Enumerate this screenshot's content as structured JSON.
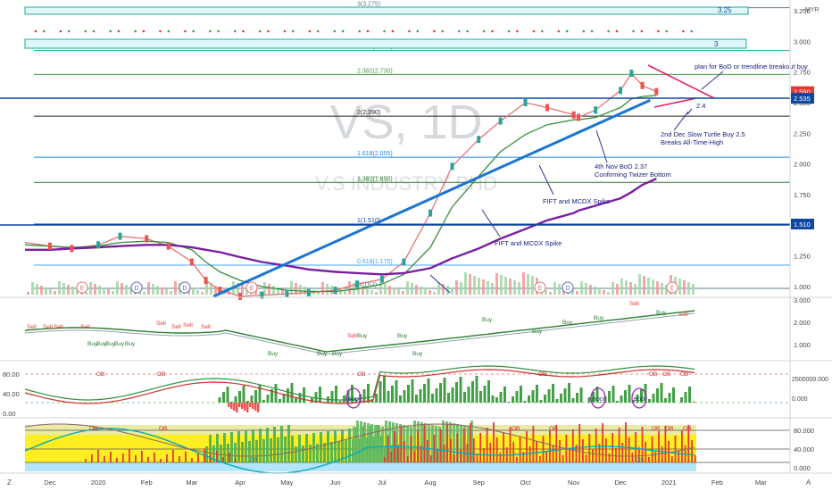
{
  "watermark": {
    "symbol": "VS, 1D",
    "company": "V.S INDUSTRY BHD"
  },
  "currency": "MYR",
  "x_axis": {
    "ticks": [
      "Dec",
      "2020",
      "Feb",
      "Mar",
      "Apr",
      "May",
      "Jun",
      "Jul",
      "Aug",
      "Sep",
      "Oct",
      "Nov",
      "Dec",
      "2021",
      "Feb",
      "Mar"
    ],
    "tz_label": "Z",
    "auto_label": "A"
  },
  "price_panel": {
    "y_ticks": [
      "3.250",
      "3.000",
      "2.750",
      "2.500",
      "2.250",
      "2.000",
      "1.750",
      "1.500",
      "1.250",
      "1.000"
    ],
    "price_tags": [
      {
        "label": "2.590",
        "color": "#e53935"
      },
      {
        "label": "2.535",
        "color": "#0d47a1"
      },
      {
        "label": "1.510",
        "color": "#0d47a1"
      }
    ],
    "fib_levels": [
      {
        "label": "3(3.275)",
        "color": "#607d8b"
      },
      {
        "label": "2.618(2.925)",
        "color": "#26a69a"
      },
      {
        "label": "2.382(2.730)",
        "color": "#43a047"
      },
      {
        "label": "2(2.390)",
        "color": "#212121"
      },
      {
        "label": "1.618(2.055)",
        "color": "#1e88e5"
      },
      {
        "label": "1.382(1.850)",
        "color": "#2e7d32"
      },
      {
        "label": "1(1.510)",
        "color": "#0d47a1"
      },
      {
        "label": "0.618(1.175)",
        "color": "#42a5f5"
      },
      {
        "label": "0(0.62)",
        "color": "#607d8b"
      }
    ],
    "box_labels": [
      "3.25",
      "3"
    ],
    "annotations": [
      {
        "text": "plan for BoD or trendline breakout buy"
      },
      {
        "text": "2.4"
      },
      {
        "text": "2nd Dec Slow Turtle Buy 2.5"
      },
      {
        "text": "Breaks All-Time-High"
      },
      {
        "text": "4th Nov BoD 2.37"
      },
      {
        "text": "Confirming Twizer Bottom"
      },
      {
        "text": "FIFT and MCDX Spike"
      },
      {
        "text": "FIFT and MCDX Spike"
      }
    ],
    "event_markers": [
      "E",
      "D",
      "D",
      "E",
      "E",
      "D",
      "E"
    ]
  },
  "indicator1": {
    "y_ticks": [
      "3.000",
      "2.000",
      "1.000"
    ],
    "labels": [
      "Sell",
      "Sell",
      "Sell",
      "Sell",
      "Sell",
      "Sell",
      "Sell",
      "Sell",
      "Buy",
      "Buy",
      "Buy",
      "Buy",
      "Buy",
      "Buy",
      "Buy",
      "Buy",
      "Buy",
      "Buy",
      "Buy",
      "Buy",
      "Buy",
      "Sell",
      "Sell",
      "Buy",
      "Buy",
      "Sell",
      "Buy"
    ]
  },
  "indicator2": {
    "y_ticks_left": [
      "80.00",
      "40.00",
      "0.00"
    ],
    "y_ticks_right": [
      "2500000.000",
      "0.000"
    ],
    "ob_labels": [
      "OB",
      "OB",
      "OB",
      "OB",
      "OB",
      "OB",
      "OB"
    ],
    "bod_labels": [
      "BOD",
      "BOD",
      "BOD"
    ]
  },
  "indicator3": {
    "y_ticks": [
      "80.000",
      "40.000",
      "0.000"
    ],
    "labels": [
      "OB",
      "OB",
      "OB",
      "OB",
      "OB",
      "OB",
      "OB",
      "OS",
      "OS"
    ]
  },
  "chart_data": {
    "type": "line",
    "title": "VS, 1D",
    "xlabel": "",
    "ylabel": "",
    "ylim": [
      0.93,
      3.31
    ],
    "x": [
      "2019-11-15",
      "2019-12-01",
      "2019-12-15",
      "2020-01-01",
      "2020-01-15",
      "2020-02-01",
      "2020-02-15",
      "2020-03-01",
      "2020-03-10",
      "2020-03-19",
      "2020-04-01",
      "2020-04-15",
      "2020-05-01",
      "2020-05-15",
      "2020-06-01",
      "2020-06-15",
      "2020-07-01",
      "2020-07-15",
      "2020-08-01",
      "2020-08-15",
      "2020-09-01",
      "2020-09-15",
      "2020-10-01",
      "2020-10-15",
      "2020-11-01",
      "2020-11-04",
      "2020-11-15",
      "2020-12-01",
      "2020-12-08",
      "2020-12-15",
      "2020-12-24"
    ],
    "series": [
      {
        "values": [
          1.36,
          1.33,
          1.31,
          1.34,
          1.41,
          1.39,
          1.33,
          1.2,
          1.05,
          0.97,
          0.92,
          0.93,
          0.94,
          0.95,
          0.97,
          1.02,
          1.06,
          1.2,
          1.6,
          1.98,
          2.2,
          2.35,
          2.5,
          2.46,
          2.4,
          2.38,
          2.44,
          2.6,
          2.74,
          2.64,
          2.59
        ]
      },
      {
        "values": [
          1.34,
          1.33,
          1.32,
          1.33,
          1.36,
          1.37,
          1.36,
          1.3,
          1.2,
          1.12,
          1.05,
          1.0,
          0.97,
          0.96,
          0.96,
          0.98,
          1.02,
          1.1,
          1.32,
          1.65,
          1.9,
          2.1,
          2.24,
          2.32,
          2.36,
          2.36,
          2.38,
          2.46,
          2.53,
          2.55,
          2.56
        ]
      },
      {
        "values": [
          1.3,
          1.3,
          1.31,
          1.32,
          1.33,
          1.34,
          1.34,
          1.32,
          1.3,
          1.28,
          1.24,
          1.2,
          1.17,
          1.14,
          1.12,
          1.11,
          1.1,
          1.11,
          1.15,
          1.23,
          1.31,
          1.39,
          1.47,
          1.54,
          1.6,
          1.62,
          1.66,
          1.72,
          1.77,
          1.83,
          1.88
        ]
      }
    ],
    "trendline": {
      "x": [
        "2020-03-15",
        "2020-12-20"
      ],
      "y": [
        0.92,
        2.52
      ]
    }
  }
}
